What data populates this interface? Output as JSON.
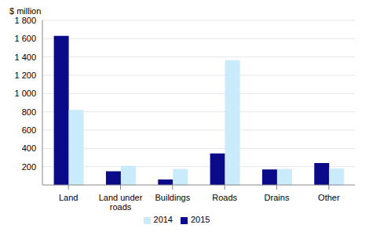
{
  "chart_data": {
    "type": "bar",
    "y_label": "$ million",
    "categories": [
      "Land",
      "Land under roads",
      "Buildings",
      "Roads",
      "Drains",
      "Other"
    ],
    "series": [
      {
        "name": "2015",
        "color": "#0b0b8a",
        "values": [
          1630,
          150,
          60,
          345,
          170,
          240
        ]
      },
      {
        "name": "2014",
        "color": "#c9ebfb",
        "values": [
          820,
          210,
          175,
          1365,
          175,
          180
        ]
      }
    ],
    "ylim": [
      0,
      1800
    ],
    "yticks": [
      200,
      400,
      600,
      800,
      {
        "value": 1000,
        "label": "1 000"
      },
      {
        "value": 1200,
        "label": "1 200"
      },
      {
        "value": 1400,
        "label": "1 400"
      },
      {
        "value": 1600,
        "label": "1 600"
      },
      {
        "value": 1800,
        "label": "1 800"
      }
    ],
    "grid": true,
    "legend": "bottom"
  }
}
